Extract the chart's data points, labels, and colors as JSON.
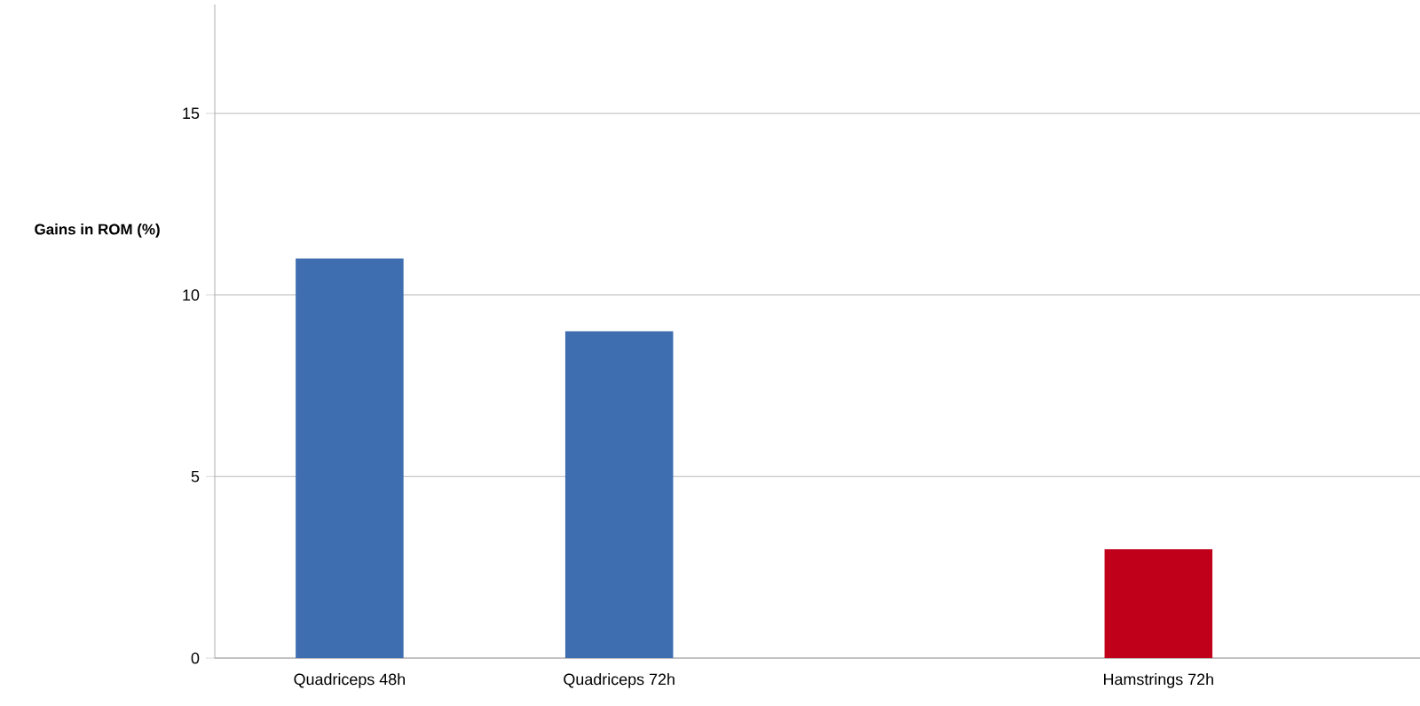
{
  "chart_data": {
    "type": "bar",
    "ylabel": "Gains in ROM (%)",
    "categories": [
      "Quadriceps 48h",
      "Quadriceps 72h",
      null,
      "Hamstrings 72h"
    ],
    "values": [
      11,
      9,
      null,
      3
    ],
    "colors": [
      "#3e6db0",
      "#3e6db0",
      "#3e6db0",
      "#c0001a"
    ],
    "ylim": [
      0,
      18
    ],
    "yticks": [
      0,
      5,
      10,
      15
    ],
    "grid": "y"
  }
}
